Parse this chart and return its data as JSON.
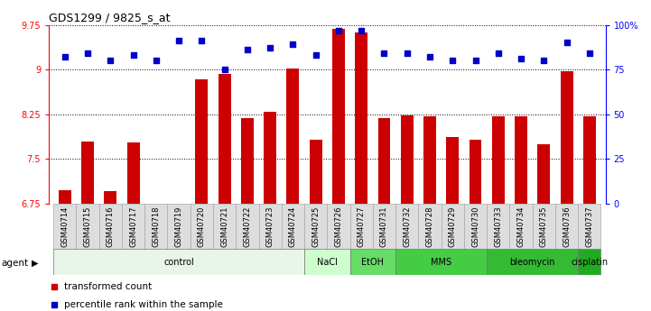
{
  "title": "GDS1299 / 9825_s_at",
  "samples": [
    "GSM40714",
    "GSM40715",
    "GSM40716",
    "GSM40717",
    "GSM40718",
    "GSM40719",
    "GSM40720",
    "GSM40721",
    "GSM40722",
    "GSM40723",
    "GSM40724",
    "GSM40725",
    "GSM40726",
    "GSM40727",
    "GSM40731",
    "GSM40732",
    "GSM40728",
    "GSM40729",
    "GSM40730",
    "GSM40733",
    "GSM40734",
    "GSM40735",
    "GSM40736",
    "GSM40737"
  ],
  "bar_values": [
    6.97,
    7.79,
    6.96,
    7.78,
    6.66,
    6.72,
    8.84,
    8.93,
    8.19,
    8.29,
    9.02,
    7.82,
    9.68,
    9.62,
    8.18,
    8.23,
    8.21,
    7.87,
    7.83,
    8.22,
    8.22,
    7.75,
    8.98,
    8.22
  ],
  "percentile_values": [
    82,
    84,
    80,
    83,
    80,
    91,
    91,
    75,
    86,
    87,
    89,
    83,
    97,
    97,
    84,
    84,
    82,
    80,
    80,
    84,
    81,
    80,
    90,
    84
  ],
  "ymin": 6.75,
  "ymax": 9.75,
  "yticks_left": [
    6.75,
    7.5,
    8.25,
    9.0,
    9.75
  ],
  "ytick_labels_left": [
    "6.75",
    "7.5",
    "8.25",
    "9",
    "9.75"
  ],
  "yticks_right": [
    0,
    25,
    50,
    75,
    100
  ],
  "ytick_labels_right": [
    "0",
    "25",
    "50",
    "75",
    "100%"
  ],
  "bar_color": "#cc0000",
  "scatter_color": "#0000cc",
  "agent_groups": [
    {
      "label": "control",
      "start": 0,
      "end": 11,
      "color": "#e8f5e8"
    },
    {
      "label": "NaCl",
      "start": 11,
      "end": 13,
      "color": "#ccffcc"
    },
    {
      "label": "EtOH",
      "start": 13,
      "end": 15,
      "color": "#66dd66"
    },
    {
      "label": "MMS",
      "start": 15,
      "end": 19,
      "color": "#44cc44"
    },
    {
      "label": "bleomycin",
      "start": 19,
      "end": 23,
      "color": "#33bb33"
    },
    {
      "label": "cisplatin",
      "start": 23,
      "end": 24,
      "color": "#22aa22"
    }
  ],
  "legend_bar_label": "transformed count",
  "legend_scatter_label": "percentile rank within the sample"
}
